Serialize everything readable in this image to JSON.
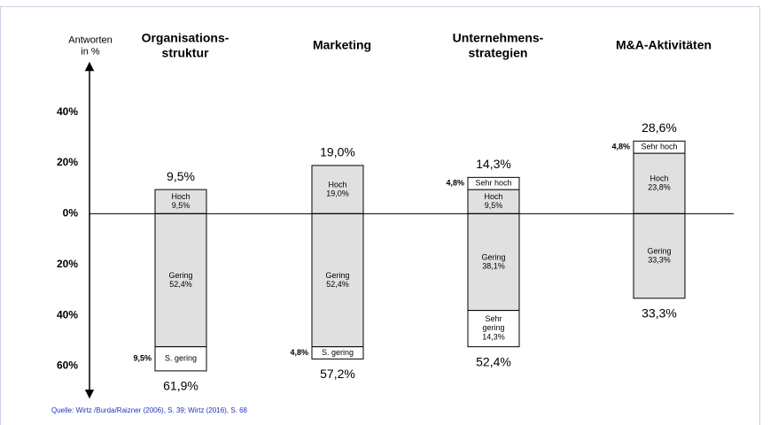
{
  "chart_data": {
    "type": "diverging_stacked_bar",
    "y_label": "Antworten\nin %",
    "categories": [
      "Organisations-\nstruktur",
      "Marketing",
      "Unternehmens-\nstrategien",
      "M&A-Aktivitäten"
    ],
    "series": [
      {
        "color": "#e0e0e0",
        "labels": [
          "Hoch",
          "Hoch",
          "Hoch",
          "Hoch"
        ],
        "values": [
          9.5,
          19.0,
          9.5,
          23.8
        ],
        "value_labels": [
          "9,5%",
          "19,0%",
          "9,5%",
          "23,8%"
        ]
      },
      {
        "color": "#ffffff",
        "labels": [
          null,
          null,
          "Sehr hoch",
          "Sehr hoch"
        ],
        "values": [
          null,
          null,
          4.8,
          4.8
        ],
        "value_labels": [
          null,
          null,
          "4,8%",
          "4,8%"
        ]
      },
      {
        "color": "#e0e0e0",
        "labels": [
          "Gering",
          "Gering",
          "Gering",
          "Gering"
        ],
        "values": [
          -52.4,
          -52.4,
          -38.1,
          -33.3
        ],
        "value_labels": [
          "52,4%",
          "52,4%",
          "38,1%",
          "33,3%"
        ]
      },
      {
        "color": "#ffffff",
        "labels": [
          "S. gering",
          "S. gering",
          "Sehr\ngering",
          null
        ],
        "values": [
          -9.5,
          -4.8,
          -14.3,
          null
        ],
        "value_labels": [
          "9,5%",
          "4,8%",
          "14,3%",
          null
        ]
      }
    ],
    "top_totals": {
      "values": [
        9.5,
        19.0,
        14.3,
        28.6
      ],
      "value_labels": [
        "9,5%",
        "19,0%",
        "14,3%",
        "28,6%"
      ]
    },
    "bottom_totals": {
      "values": [
        -61.9,
        -57.2,
        -52.4,
        -33.3
      ],
      "value_labels": [
        "61,9%",
        "57,2%",
        "52,4%",
        "33,3%"
      ]
    },
    "ylim": [
      -71,
      58
    ],
    "yticks": [
      {
        "value": 40,
        "label": "40%"
      },
      {
        "value": 20,
        "label": "20%"
      },
      {
        "value": 0,
        "label": "0%"
      },
      {
        "value": -20,
        "label": "20%"
      },
      {
        "value": -40,
        "label": "40%"
      },
      {
        "value": -60,
        "label": "60%"
      }
    ],
    "source": "Quelle: Wirtz /Burda/Raizner (2006), S. 39; Wirtz (2016), S. 68"
  }
}
